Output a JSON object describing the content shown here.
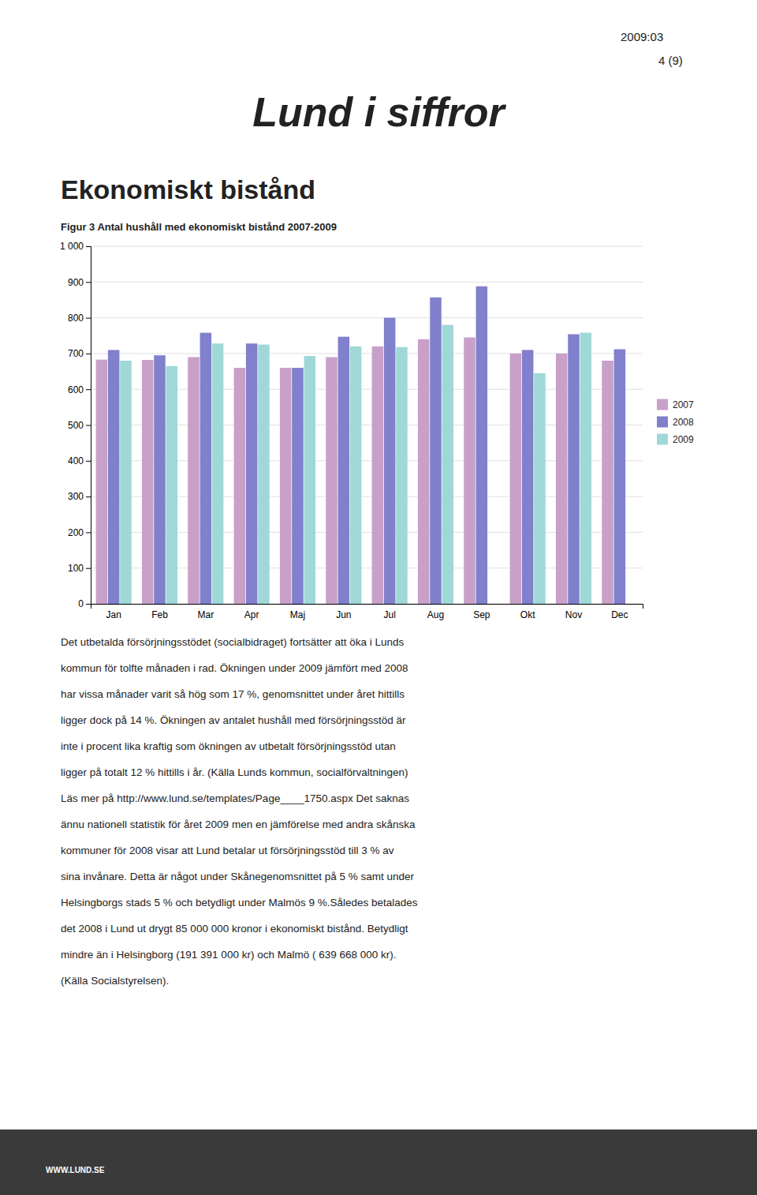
{
  "page_info": "2009:03",
  "page_num": "4 (9)",
  "title": "Lund i siffror",
  "heading": "Ekonomiskt bistånd",
  "chart_data": {
    "type": "bar",
    "title": "Figur 3 Antal hushåll med ekonomiskt bistånd 2007-2009",
    "categories": [
      "Jan",
      "Feb",
      "Mar",
      "Apr",
      "Maj",
      "Jun",
      "Jul",
      "Aug",
      "Sep",
      "Okt",
      "Nov",
      "Dec"
    ],
    "series": [
      {
        "name": "2007",
        "color": "#C8A0C8",
        "values": [
          683,
          682,
          690,
          660,
          660,
          690,
          720,
          740,
          745,
          700,
          700,
          680
        ]
      },
      {
        "name": "2008",
        "color": "#8080CC",
        "values": [
          710,
          695,
          758,
          728,
          660,
          747,
          800,
          857,
          888,
          710,
          754,
          712
        ]
      },
      {
        "name": "2009",
        "color": "#A0D8D8",
        "values": [
          680,
          665,
          728,
          725,
          693,
          720,
          718,
          780,
          null,
          645,
          758,
          null
        ]
      }
    ],
    "ylim": [
      0,
      1000
    ],
    "yticks": [
      0,
      100,
      200,
      300,
      400,
      500,
      600,
      700,
      800,
      900,
      {
        "value": 1000,
        "label": "1 000"
      }
    ],
    "grid": true,
    "legend": "right"
  },
  "body_lines": [
    "Det utbetalda försörjningsstödet (socialbidraget) fortsätter att öka i Lunds",
    "kommun för tolfte månaden i rad. Ökningen under 2009 jämfört med 2008",
    "har vissa månader varit så hög som 17 %, genomsnittet under året hittills",
    "ligger dock på 14 %. Ökningen av antalet hushåll med försörjningsstöd är",
    "inte i procent lika kraftig som ökningen av utbetalt försörjningsstöd utan",
    "ligger på totalt 12 % hittills i år. (Källa Lunds kommun, socialförvaltningen)",
    "Läs mer på http://www.lund.se/templates/Page____1750.aspx Det saknas",
    "ännu nationell statistik för året 2009 men en jämförelse med andra skånska",
    "kommuner för 2008 visar att Lund betalar ut försörjningsstöd till 3 % av",
    "sina invånare. Detta är något under Skånegenomsnittet på 5 % samt under",
    "Helsingborgs stads 5 % och betydligt under Malmös 9 %.Således betalades",
    "det 2008 i Lund ut drygt 85 000 000 kronor i ekonomiskt bistånd. Betydligt",
    "mindre än i Helsingborg (191 391 000 kr) och Malmö ( 639 668 000 kr).",
    "(Källa Socialstyrelsen)."
  ],
  "footer": "WWW.LUND.SE"
}
